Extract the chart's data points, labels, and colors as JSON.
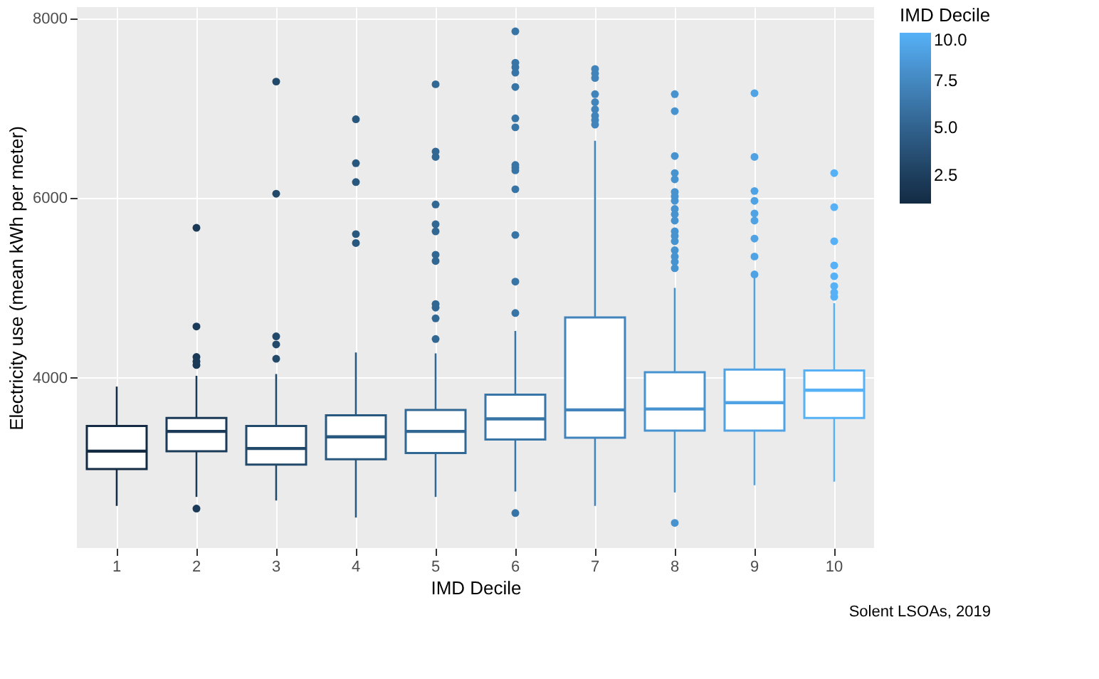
{
  "chart_data": {
    "type": "box",
    "xlabel": "IMD Decile",
    "ylabel": "Electricity use (mean kWh per meter)",
    "clabel": "IMD Decile",
    "annotations": [
      "Solent LSOAs, 2019"
    ],
    "categories": [
      "1",
      "2",
      "3",
      "4",
      "5",
      "6",
      "7",
      "8",
      "9",
      "10"
    ],
    "colors": [
      "#132b43",
      "#1a3a57",
      "#224969",
      "#29587f",
      "#316793",
      "#3875a7",
      "#4084bb",
      "#4793cf",
      "#4fa2e3",
      "#56b1f7"
    ],
    "boxes": [
      {
        "low": 2570,
        "q1": 2980,
        "median": 3180,
        "q3": 3460,
        "high": 3900
      },
      {
        "low": 2670,
        "q1": 3180,
        "median": 3400,
        "q3": 3550,
        "high": 4020,
        "outliers": [
          2540,
          4140,
          4180,
          4230,
          4570,
          5670
        ]
      },
      {
        "low": 2630,
        "q1": 3030,
        "median": 3210,
        "q3": 3460,
        "high": 4040,
        "outliers": [
          4210,
          4370,
          4460,
          6050,
          7300
        ]
      },
      {
        "low": 2440,
        "q1": 3090,
        "median": 3340,
        "q3": 3580,
        "high": 4280,
        "outliers": [
          5500,
          5600,
          6180,
          6390,
          6880
        ]
      },
      {
        "low": 2670,
        "q1": 3160,
        "median": 3400,
        "q3": 3640,
        "high": 4270,
        "outliers": [
          4430,
          4660,
          4780,
          4820,
          5300,
          5370,
          5630,
          5710,
          5930,
          6460,
          6520,
          7270
        ]
      },
      {
        "low": 2730,
        "q1": 3310,
        "median": 3540,
        "q3": 3810,
        "high": 4520,
        "outliers": [
          2490,
          4720,
          5070,
          5590,
          6100,
          6310,
          6340,
          6370,
          6790,
          6890,
          7240,
          7400,
          7460,
          7510,
          7860
        ]
      },
      {
        "low": 2570,
        "q1": 3330,
        "median": 3640,
        "q3": 4670,
        "high": 6640,
        "outliers": [
          6820,
          6870,
          6920,
          6990,
          7070,
          7160,
          7340,
          7390,
          7440
        ]
      },
      {
        "low": 2720,
        "q1": 3410,
        "median": 3650,
        "q3": 4060,
        "high": 5000,
        "outliers": [
          2380,
          5220,
          5290,
          5350,
          5420,
          5520,
          5580,
          5630,
          5750,
          5820,
          5880,
          5970,
          6020,
          6070,
          6210,
          6280,
          6470,
          6970,
          7160
        ]
      },
      {
        "low": 2800,
        "q1": 3410,
        "median": 3720,
        "q3": 4090,
        "high": 5110,
        "outliers": [
          5150,
          5350,
          5550,
          5750,
          5830,
          5970,
          6080,
          6460,
          7170
        ]
      },
      {
        "low": 2840,
        "q1": 3550,
        "median": 3860,
        "q3": 4080,
        "high": 4830,
        "outliers": [
          4900,
          4950,
          5020,
          5130,
          5250,
          5520,
          5900,
          6280
        ]
      }
    ],
    "ylim": [
      2100,
      8130
    ],
    "yticks": [
      4000,
      6000,
      8000
    ],
    "clim": [
      1,
      10
    ],
    "cticks": [
      {
        "value": 2.5,
        "label": "2.5"
      },
      {
        "value": 5,
        "label": "5.0"
      },
      {
        "value": 7.5,
        "label": "7.5"
      },
      {
        "value": 10,
        "label": "10.0"
      }
    ],
    "grid": true
  }
}
